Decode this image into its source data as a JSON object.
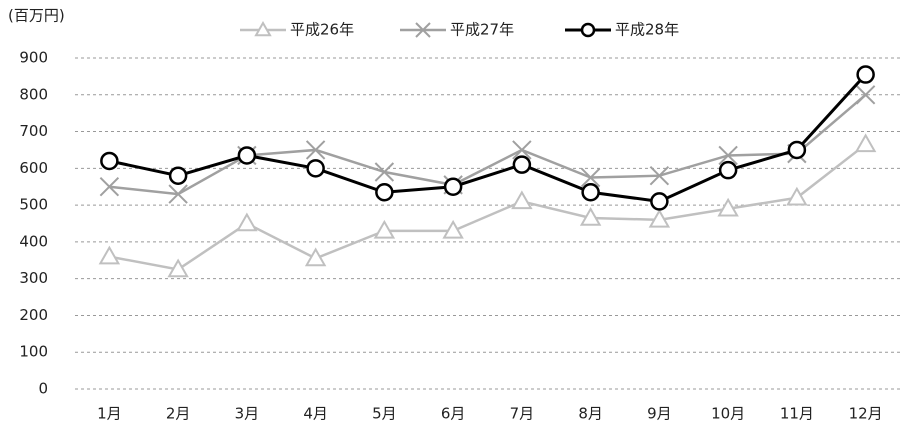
{
  "chart_data": {
    "type": "line",
    "y_label": "(百万円)",
    "categories": [
      "1月",
      "2月",
      "3月",
      "4月",
      "5月",
      "6月",
      "7月",
      "8月",
      "9月",
      "10月",
      "11月",
      "12月"
    ],
    "series": [
      {
        "name": "平成26年",
        "color": "#c0c0c0",
        "marker": "triangle",
        "values": [
          360,
          325,
          450,
          355,
          430,
          430,
          510,
          465,
          460,
          490,
          520,
          665
        ]
      },
      {
        "name": "平成27年",
        "color": "#a0a0a0",
        "marker": "x",
        "values": [
          550,
          530,
          635,
          650,
          590,
          555,
          650,
          575,
          580,
          635,
          640,
          800
        ]
      },
      {
        "name": "平成28年",
        "color": "#000000",
        "marker": "circle",
        "values": [
          620,
          580,
          635,
          600,
          535,
          550,
          610,
          535,
          510,
          595,
          650,
          855
        ]
      }
    ],
    "ylim": [
      0,
      900
    ],
    "yticks": [
      0,
      100,
      200,
      300,
      400,
      500,
      600,
      700,
      800,
      900
    ],
    "grid": true,
    "legend": "top"
  }
}
